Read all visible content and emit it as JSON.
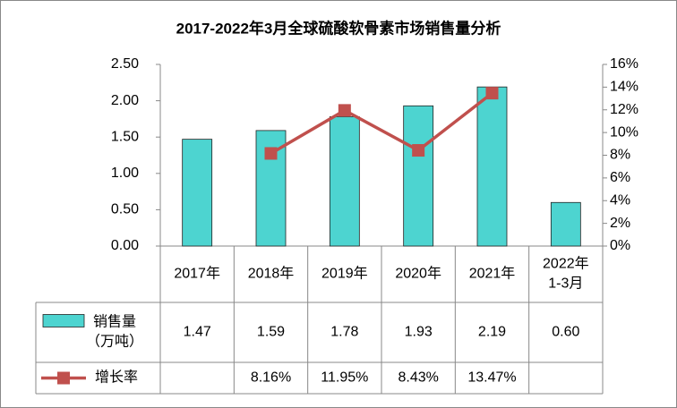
{
  "chart_data": {
    "type": "bar-line",
    "title": "2017-2022年3月全球硫酸软骨素市场销售量分析",
    "categories": [
      "2017年",
      "2018年",
      "2019年",
      "2020年",
      "2021年",
      "2022年\n1-3月"
    ],
    "series": [
      {
        "name": "销售量\n（万吨）",
        "type": "bar",
        "color": "#4dd4d0",
        "values": [
          1.47,
          1.59,
          1.78,
          1.93,
          2.19,
          0.6
        ],
        "value_labels": [
          "1.47",
          "1.59",
          "1.78",
          "1.93",
          "2.19",
          "0.60"
        ]
      },
      {
        "name": "增长率",
        "type": "line",
        "axis": "y2",
        "color": "#c0504d",
        "values": [
          null,
          8.16,
          11.95,
          8.43,
          13.47,
          null
        ],
        "value_labels": [
          null,
          "8.16%",
          "11.95%",
          "8.43%",
          "13.47%",
          null
        ]
      }
    ],
    "ylim": [
      0,
      2.5
    ],
    "yticks": [
      {
        "value": 0,
        "label": "0.00"
      },
      {
        "value": 0.5,
        "label": "0.50"
      },
      {
        "value": 1,
        "label": "1.00"
      },
      {
        "value": 1.5,
        "label": "1.50"
      },
      {
        "value": 2,
        "label": "2.00"
      },
      {
        "value": 2.5,
        "label": "2.50"
      }
    ],
    "y2lim": [
      0,
      16
    ],
    "y2ticks": [
      {
        "value": 0,
        "label": "0%"
      },
      {
        "value": 2,
        "label": "2%"
      },
      {
        "value": 4,
        "label": "4%"
      },
      {
        "value": 6,
        "label": "6%"
      },
      {
        "value": 8,
        "label": "8%"
      },
      {
        "value": 10,
        "label": "10%"
      },
      {
        "value": 12,
        "label": "12%"
      },
      {
        "value": 14,
        "label": "14%"
      },
      {
        "value": 16,
        "label": "16%"
      }
    ],
    "grid": false
  }
}
